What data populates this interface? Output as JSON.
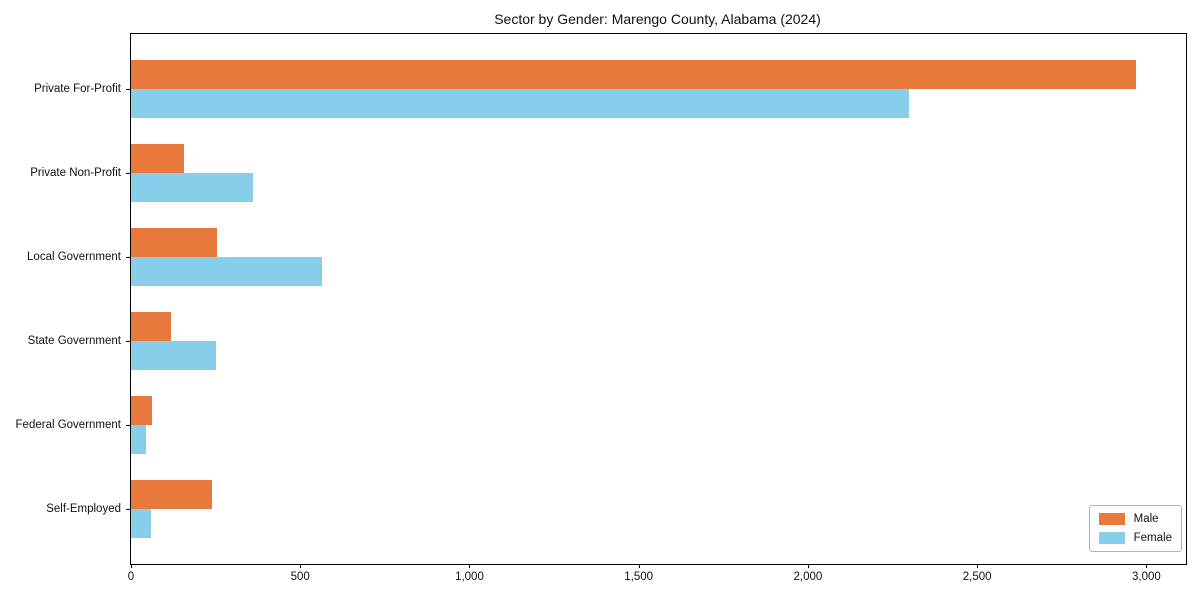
{
  "chart_data": {
    "type": "bar",
    "orientation": "horizontal",
    "title": "Sector by Gender: Marengo County, Alabama (2024)",
    "categories": [
      "Private For-Profit",
      "Private Non-Profit",
      "Local Government",
      "State Government",
      "Federal Government",
      "Self-Employed"
    ],
    "series": [
      {
        "name": "Male",
        "color": "#e8793d",
        "values": [
          2970,
          158,
          255,
          117,
          62,
          238
        ]
      },
      {
        "name": "Female",
        "color": "#87ceeb",
        "values": [
          2300,
          360,
          565,
          250,
          45,
          60
        ]
      }
    ],
    "xlabel": "",
    "ylabel": "",
    "xlim": [
      0,
      3117
    ],
    "x_ticks": [
      0,
      500,
      1000,
      1500,
      2000,
      2500,
      3000
    ],
    "x_tick_labels": [
      "0",
      "500",
      "1,000",
      "1,500",
      "2,000",
      "2,500",
      "3,000"
    ],
    "grid": false,
    "legend_position": "lower right",
    "plot_border_color": "#000000",
    "background_color": "#ffffff"
  }
}
